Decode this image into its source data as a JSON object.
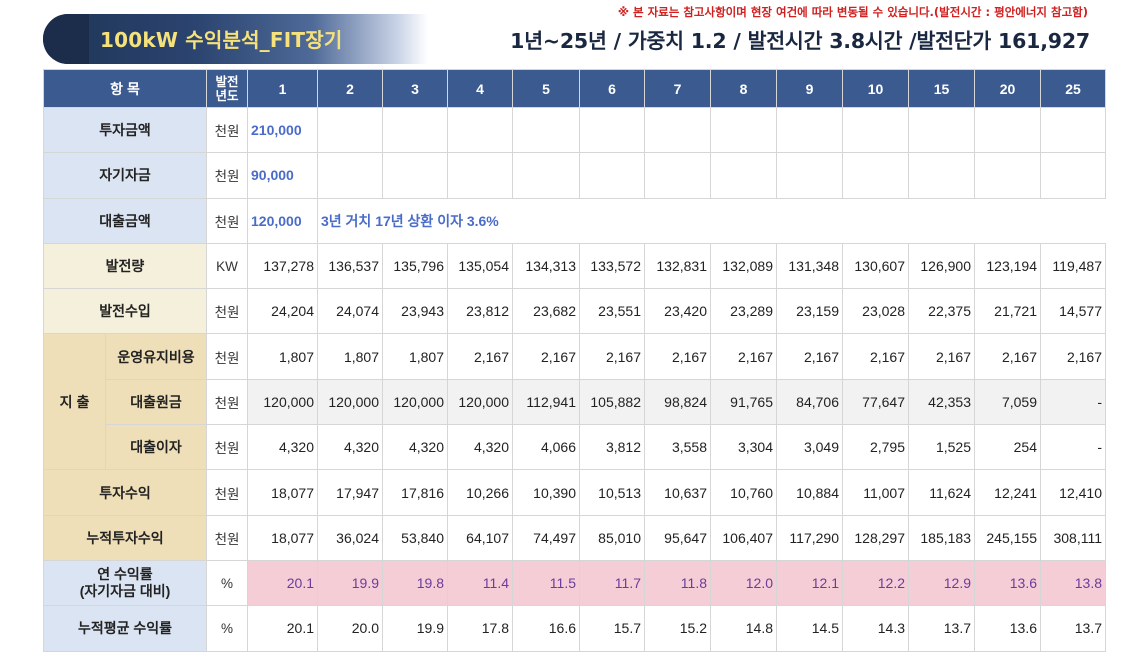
{
  "header": {
    "title": "100kW 수익분석_FIT장기",
    "note": "※ 본 자료는 참고사항이며 현장 여건에 따라 변동될 수 있습니다.(발전시간 : 평안에너지 참고함)",
    "subtitle": "1년~25년 / 가중치 1.2 / 발전시간 3.8시간 /발전단가 161,927"
  },
  "table": {
    "col_item": "항 목",
    "col_year_line1": "발전",
    "col_year_line2": "년도",
    "years": [
      "1",
      "2",
      "3",
      "4",
      "5",
      "6",
      "7",
      "8",
      "9",
      "10",
      "15",
      "20",
      "25"
    ],
    "investment": {
      "label": "투자금액",
      "unit": "천원",
      "value": "210,000"
    },
    "equity": {
      "label": "자기자금",
      "unit": "천원",
      "value": "90,000"
    },
    "loan": {
      "label": "대출금액",
      "unit": "천원",
      "value": "120,000",
      "note": "3년 거치 17년 상환 이자 3.6%"
    },
    "generation": {
      "label": "발전량",
      "unit": "KW",
      "values": [
        "137,278",
        "136,537",
        "135,796",
        "135,054",
        "134,313",
        "133,572",
        "132,831",
        "132,089",
        "131,348",
        "130,607",
        "126,900",
        "123,194",
        "119,487"
      ]
    },
    "revenue": {
      "label": "발전수입",
      "unit": "천원",
      "values": [
        "24,204",
        "24,074",
        "23,943",
        "23,812",
        "23,682",
        "23,551",
        "23,420",
        "23,289",
        "23,159",
        "23,028",
        "22,375",
        "21,721",
        "14,577"
      ]
    },
    "expense_group": "지 출",
    "om": {
      "label": "운영유지비용",
      "unit": "천원",
      "values": [
        "1,807",
        "1,807",
        "1,807",
        "2,167",
        "2,167",
        "2,167",
        "2,167",
        "2,167",
        "2,167",
        "2,167",
        "2,167",
        "2,167",
        "2,167"
      ]
    },
    "principal": {
      "label": "대출원금",
      "unit": "천원",
      "values": [
        "120,000",
        "120,000",
        "120,000",
        "120,000",
        "112,941",
        "105,882",
        "98,824",
        "91,765",
        "84,706",
        "77,647",
        "42,353",
        "7,059",
        "-"
      ]
    },
    "interest": {
      "label": "대출이자",
      "unit": "천원",
      "values": [
        "4,320",
        "4,320",
        "4,320",
        "4,320",
        "4,066",
        "3,812",
        "3,558",
        "3,304",
        "3,049",
        "2,795",
        "1,525",
        "254",
        "-"
      ]
    },
    "profit": {
      "label": "투자수익",
      "unit": "천원",
      "values": [
        "18,077",
        "17,947",
        "17,816",
        "10,266",
        "10,390",
        "10,513",
        "10,637",
        "10,760",
        "10,884",
        "11,007",
        "11,624",
        "12,241",
        "12,410"
      ]
    },
    "cum_profit": {
      "label": "누적투자수익",
      "unit": "천원",
      "values": [
        "18,077",
        "36,024",
        "53,840",
        "64,107",
        "74,497",
        "85,010",
        "95,647",
        "106,407",
        "117,290",
        "128,297",
        "185,183",
        "245,155",
        "308,111"
      ]
    },
    "annual_yield": {
      "label_line1": "연 수익률",
      "label_line2": "(자기자금 대비)",
      "unit": "%",
      "values": [
        "20.1",
        "19.9",
        "19.8",
        "11.4",
        "11.5",
        "11.7",
        "11.8",
        "12.0",
        "12.1",
        "12.2",
        "12.9",
        "13.6",
        "13.8"
      ]
    },
    "avg_yield": {
      "label": "누적평균 수익률",
      "unit": "%",
      "values": [
        "20.1",
        "20.0",
        "19.9",
        "17.8",
        "16.6",
        "15.7",
        "15.2",
        "14.8",
        "14.5",
        "14.3",
        "13.7",
        "13.6",
        "13.7"
      ]
    }
  }
}
